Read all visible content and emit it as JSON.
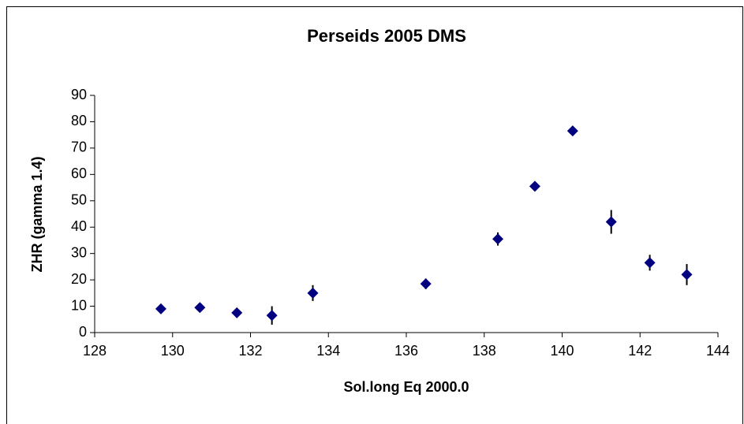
{
  "chart_data": {
    "type": "scatter",
    "title": "Perseids 2005 DMS",
    "x_label": "Sol.long Eq 2000.0",
    "y_label": "ZHR (gamma 1.4)",
    "series": [
      {
        "name": "ZHR",
        "color": "#000080",
        "x": [
          129.7,
          130.7,
          131.65,
          132.55,
          133.6,
          136.5,
          138.35,
          139.3,
          140.27,
          141.26,
          142.25,
          143.2
        ],
        "values": [
          9,
          9.5,
          7.5,
          6.5,
          15,
          18.5,
          35.5,
          55.5,
          76.5,
          42,
          26.5,
          22
        ],
        "errors": [
          1.5,
          1.2,
          1.2,
          3.5,
          3,
          2,
          2.5,
          1.5,
          1.5,
          4.5,
          3,
          4
        ]
      }
    ],
    "xlim": [
      128,
      144
    ],
    "xticks": [
      128,
      130,
      132,
      134,
      136,
      138,
      140,
      142,
      144
    ],
    "ylim": [
      0,
      90
    ],
    "yticks": [
      0,
      10,
      20,
      30,
      40,
      50,
      60,
      70,
      80,
      90
    ],
    "grid": false,
    "legend": false
  }
}
